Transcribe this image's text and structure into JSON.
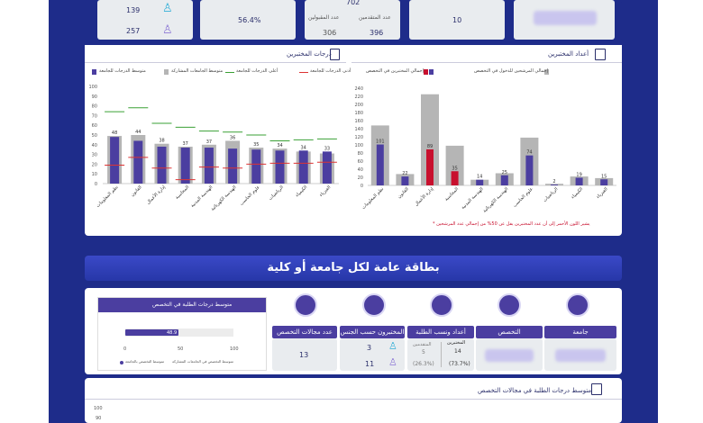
{
  "top_cards": {
    "male_count": "139",
    "female_count": "257",
    "percent": "56.4%",
    "applicants_total": "702",
    "accepted_label": "عدد المقبولين",
    "accepted_value": "396",
    "rejected_label": "عدد المتقدمين",
    "rejected_value": "306",
    "count": "10"
  },
  "section_headers": {
    "left": "درجات المختبرين",
    "right": "أعداد المختبرين"
  },
  "left_chart": {
    "legend": [
      "متوسط الدرجات للجامعة",
      "متوسط الجامعات المشاركة",
      "أعلى الدرجات للجامعة",
      "أدنى الدرجات للجامعة"
    ],
    "colors": {
      "bar_uni": "#4b3ea0",
      "bar_all": "#b5b5b5",
      "max_line": "#3aa035",
      "min_line": "#d33"
    }
  },
  "right_chart": {
    "legend": [
      "إجمالي المرشحين للدخول في التخصص",
      "إجمالي المختبرين في التخصص"
    ],
    "footnote": "* يشير اللون الأحمر إلى أن عدد المختبرين يقل عن 50% من إجمالي عدد المرشحين"
  },
  "chart_data": [
    {
      "type": "bar",
      "ylim": [
        0,
        100
      ],
      "yticks": [
        0,
        10,
        20,
        30,
        40,
        50,
        60,
        70,
        80,
        90,
        100
      ],
      "categories": [
        "نظم المعلومات",
        "القانون",
        "إدارة الأعمال",
        "المحاسبة",
        "الهندسة المدنية",
        "الهندسة الكهربائية",
        "علوم الحاسب",
        "الرياضيات",
        "الكيمياء",
        "الفيزياء"
      ],
      "series": [
        {
          "name": "متوسط الدرجات للجامعة",
          "values": [
            48,
            44,
            38,
            37,
            37,
            36,
            35,
            34,
            34,
            33
          ]
        },
        {
          "name": "متوسط الجامعات المشاركة",
          "values": [
            49,
            50,
            41,
            38,
            40,
            44,
            37,
            36,
            33,
            31
          ]
        },
        {
          "name": "أعلى الدرجات للجامعة",
          "values": [
            74,
            78,
            62,
            58,
            54,
            53,
            50,
            44,
            45,
            46
          ]
        },
        {
          "name": "أدنى الدرجات للجامعة",
          "values": [
            19,
            27,
            16,
            4,
            17,
            16,
            20,
            21,
            21,
            22
          ]
        }
      ]
    },
    {
      "type": "bar",
      "ylim": [
        0,
        240
      ],
      "yticks": [
        0,
        20,
        40,
        60,
        80,
        100,
        120,
        140,
        160,
        180,
        200,
        220,
        240
      ],
      "categories": [
        "نظم المعلومات",
        "القانون",
        "إدارة الأعمال",
        "المحاسبة",
        "الهندسة المدنية",
        "الهندسة الكهربائية",
        "علوم الحاسب",
        "الرياضيات",
        "الكيمياء",
        "الفيزياء"
      ],
      "series": [
        {
          "name": "إجمالي المرشحين للدخول في التخصص",
          "values": [
            148,
            28,
            225,
            98,
            14,
            30,
            118,
            4,
            22,
            18
          ]
        },
        {
          "name": "إجمالي المختبرين في التخصص",
          "values": [
            101,
            22,
            89,
            35,
            14,
            25,
            74,
            2,
            19,
            15
          ]
        }
      ],
      "red_flags": [
        false,
        false,
        true,
        true,
        false,
        false,
        false,
        false,
        false,
        false
      ]
    }
  ],
  "banner": {
    "title": "بطاقة عامة لكل جامعة أو كلية"
  },
  "bottom": {
    "avg_title": "متوسط درجات الطلبة في التخصص",
    "avg_value": "48.9",
    "axis_0": "0",
    "axis_50": "50",
    "axis_100": "100",
    "legend1": "متوسط التخصص في الجامعات المشاركة",
    "legend2": "متوسط التخصص بالجامعة",
    "labels": {
      "fields": "عدد مجالات التخصص",
      "gender": "المختبرون حسب الجنس",
      "students": "أعداد ونسب الطلبة",
      "major": "التخصص",
      "university": "جامعة"
    },
    "fields_count": "13",
    "male": "3",
    "female": "11",
    "tested_label": "المختبرين",
    "tested_value": "14",
    "tested_pct": "(73.7%)",
    "accepted_label": "المتقدمين",
    "accepted_value": "5",
    "accepted_pct": "(26.3%)",
    "section2_title": "متوسط درجات الطلبة في مجالات التخصص",
    "axis_labels": [
      "100",
      "90"
    ]
  }
}
